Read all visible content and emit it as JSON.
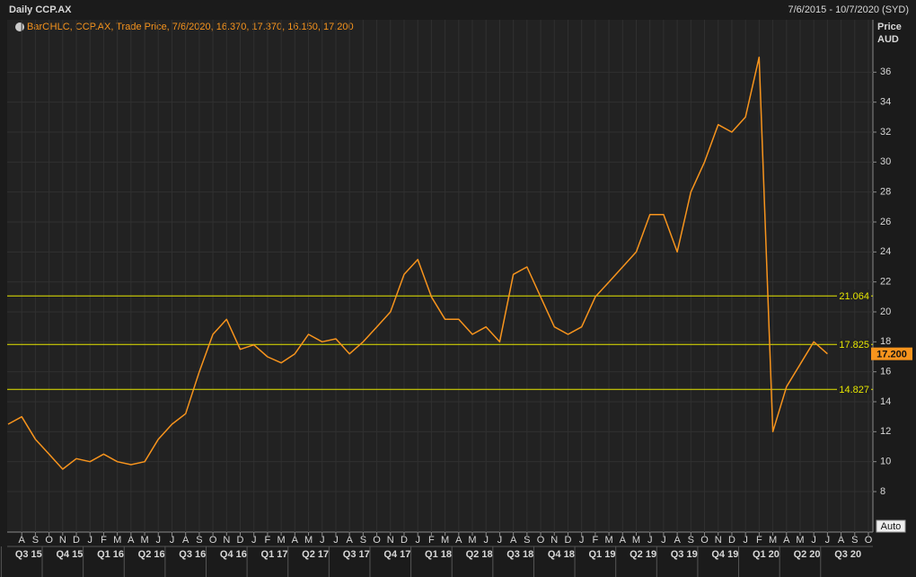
{
  "chart_data": {
    "type": "line",
    "title": "Daily CCP.AX",
    "date_range": "7/6/2015 - 10/7/2020 (SYD)",
    "legend_label": "BarOHLC, CCP.AX, Trade Price, 7/6/2020, 16.370, 17.370, 16.150, 17.200",
    "y_axis_label": "Price",
    "y_axis_unit": "AUD",
    "scale_button": "Auto",
    "color": "#f7941d",
    "x": [
      "2015-07",
      "2015-08",
      "2015-09",
      "2015-10",
      "2015-11",
      "2015-12",
      "2016-01",
      "2016-02",
      "2016-03",
      "2016-04",
      "2016-05",
      "2016-06",
      "2016-07",
      "2016-08",
      "2016-09",
      "2016-10",
      "2016-11",
      "2016-12",
      "2017-01",
      "2017-02",
      "2017-03",
      "2017-04",
      "2017-05",
      "2017-06",
      "2017-07",
      "2017-08",
      "2017-09",
      "2017-10",
      "2017-11",
      "2017-12",
      "2018-01",
      "2018-02",
      "2018-03",
      "2018-04",
      "2018-05",
      "2018-06",
      "2018-07",
      "2018-08",
      "2018-09",
      "2018-10",
      "2018-11",
      "2018-12",
      "2019-01",
      "2019-02",
      "2019-03",
      "2019-04",
      "2019-05",
      "2019-06",
      "2019-07",
      "2019-08",
      "2019-09",
      "2019-10",
      "2019-11",
      "2019-12",
      "2020-01",
      "2020-02",
      "2020-03",
      "2020-04",
      "2020-05",
      "2020-06",
      "2020-07"
    ],
    "values": [
      12.5,
      13.0,
      11.5,
      10.5,
      9.5,
      10.2,
      10.0,
      10.5,
      10.0,
      9.8,
      10.0,
      11.5,
      12.5,
      13.2,
      16.0,
      18.5,
      19.5,
      17.5,
      17.8,
      17.0,
      16.6,
      17.2,
      18.5,
      18.0,
      18.2,
      17.2,
      18.0,
      19.0,
      20.0,
      22.5,
      23.5,
      21.0,
      19.5,
      19.5,
      18.5,
      19.0,
      18.0,
      22.5,
      23.0,
      21.0,
      19.0,
      18.5,
      19.0,
      21.0,
      22.0,
      23.0,
      24.0,
      26.5,
      26.5,
      24.0,
      28.0,
      30.0,
      32.5,
      32.0,
      33.0,
      37.0,
      12.0,
      15.0,
      16.5,
      18.0,
      17.2
    ],
    "xlim": [
      "2015-07",
      "2020-10"
    ],
    "ylim": [
      5.3,
      39.5
    ],
    "yticks": [
      8,
      10,
      12,
      14,
      16,
      18,
      20,
      22,
      24,
      26,
      28,
      30,
      32,
      34,
      36
    ],
    "grid": true,
    "reference_lines": [
      21.064,
      17.825,
      14.827
    ],
    "reference_color": "#e6e600",
    "current_price": {
      "value": 17.2,
      "label": "17.200"
    },
    "xticks": [
      {
        "value": "2015-08",
        "label": "A"
      },
      {
        "value": "2015-09",
        "label": "S"
      },
      {
        "value": "2015-10",
        "label": "O"
      },
      {
        "value": "2015-11",
        "label": "N"
      },
      {
        "value": "2015-12",
        "label": "D"
      },
      {
        "value": "2016-01",
        "label": "J"
      },
      {
        "value": "2016-02",
        "label": "F"
      },
      {
        "value": "2016-03",
        "label": "M"
      },
      {
        "value": "2016-04",
        "label": "A"
      },
      {
        "value": "2016-05",
        "label": "M"
      },
      {
        "value": "2016-06",
        "label": "J"
      },
      {
        "value": "2016-07",
        "label": "J"
      },
      {
        "value": "2016-08",
        "label": "A"
      },
      {
        "value": "2016-09",
        "label": "S"
      },
      {
        "value": "2016-10",
        "label": "O"
      },
      {
        "value": "2016-11",
        "label": "N"
      },
      {
        "value": "2016-12",
        "label": "D"
      },
      {
        "value": "2017-01",
        "label": "J"
      },
      {
        "value": "2017-02",
        "label": "F"
      },
      {
        "value": "2017-03",
        "label": "M"
      },
      {
        "value": "2017-04",
        "label": "A"
      },
      {
        "value": "2017-05",
        "label": "M"
      },
      {
        "value": "2017-06",
        "label": "J"
      },
      {
        "value": "2017-07",
        "label": "J"
      },
      {
        "value": "2017-08",
        "label": "A"
      },
      {
        "value": "2017-09",
        "label": "S"
      },
      {
        "value": "2017-10",
        "label": "O"
      },
      {
        "value": "2017-11",
        "label": "N"
      },
      {
        "value": "2017-12",
        "label": "D"
      },
      {
        "value": "2018-01",
        "label": "J"
      },
      {
        "value": "2018-02",
        "label": "F"
      },
      {
        "value": "2018-03",
        "label": "M"
      },
      {
        "value": "2018-04",
        "label": "A"
      },
      {
        "value": "2018-05",
        "label": "M"
      },
      {
        "value": "2018-06",
        "label": "J"
      },
      {
        "value": "2018-07",
        "label": "J"
      },
      {
        "value": "2018-08",
        "label": "A"
      },
      {
        "value": "2018-09",
        "label": "S"
      },
      {
        "value": "2018-10",
        "label": "O"
      },
      {
        "value": "2018-11",
        "label": "N"
      },
      {
        "value": "2018-12",
        "label": "D"
      },
      {
        "value": "2019-01",
        "label": "J"
      },
      {
        "value": "2019-02",
        "label": "F"
      },
      {
        "value": "2019-03",
        "label": "M"
      },
      {
        "value": "2019-04",
        "label": "A"
      },
      {
        "value": "2019-05",
        "label": "M"
      },
      {
        "value": "2019-06",
        "label": "J"
      },
      {
        "value": "2019-07",
        "label": "J"
      },
      {
        "value": "2019-08",
        "label": "A"
      },
      {
        "value": "2019-09",
        "label": "S"
      },
      {
        "value": "2019-10",
        "label": "O"
      },
      {
        "value": "2019-11",
        "label": "N"
      },
      {
        "value": "2019-12",
        "label": "D"
      },
      {
        "value": "2020-01",
        "label": "J"
      },
      {
        "value": "2020-02",
        "label": "F"
      },
      {
        "value": "2020-03",
        "label": "M"
      },
      {
        "value": "2020-04",
        "label": "A"
      },
      {
        "value": "2020-05",
        "label": "M"
      },
      {
        "value": "2020-06",
        "label": "J"
      },
      {
        "value": "2020-07",
        "label": "J"
      },
      {
        "value": "2020-08",
        "label": "A"
      },
      {
        "value": "2020-09",
        "label": "S"
      },
      {
        "value": "2020-10",
        "label": "O"
      }
    ],
    "quarter_ticks": [
      {
        "value": "2015-07",
        "label": "Q3 15"
      },
      {
        "value": "2015-10",
        "label": "Q4 15"
      },
      {
        "value": "2016-01",
        "label": "Q1 16"
      },
      {
        "value": "2016-04",
        "label": "Q2 16"
      },
      {
        "value": "2016-07",
        "label": "Q3 16"
      },
      {
        "value": "2016-10",
        "label": "Q4 16"
      },
      {
        "value": "2017-01",
        "label": "Q1 17"
      },
      {
        "value": "2017-04",
        "label": "Q2 17"
      },
      {
        "value": "2017-07",
        "label": "Q3 17"
      },
      {
        "value": "2017-10",
        "label": "Q4 17"
      },
      {
        "value": "2018-01",
        "label": "Q1 18"
      },
      {
        "value": "2018-04",
        "label": "Q2 18"
      },
      {
        "value": "2018-07",
        "label": "Q3 18"
      },
      {
        "value": "2018-10",
        "label": "Q4 18"
      },
      {
        "value": "2019-01",
        "label": "Q1 19"
      },
      {
        "value": "2019-04",
        "label": "Q2 19"
      },
      {
        "value": "2019-07",
        "label": "Q3 19"
      },
      {
        "value": "2019-10",
        "label": "Q4 19"
      },
      {
        "value": "2020-01",
        "label": "Q1 20"
      },
      {
        "value": "2020-04",
        "label": "Q2 20"
      },
      {
        "value": "2020-07",
        "label": "Q3 20"
      }
    ]
  }
}
